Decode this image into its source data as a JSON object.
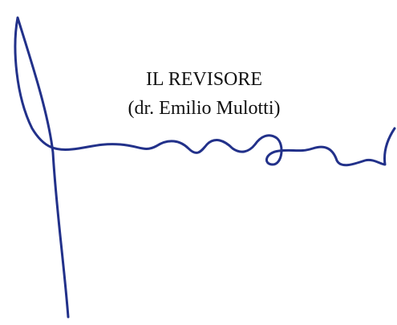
{
  "signature_block": {
    "title": "IL REVISORE",
    "name": "(dr. Emilio Mulotti)"
  }
}
